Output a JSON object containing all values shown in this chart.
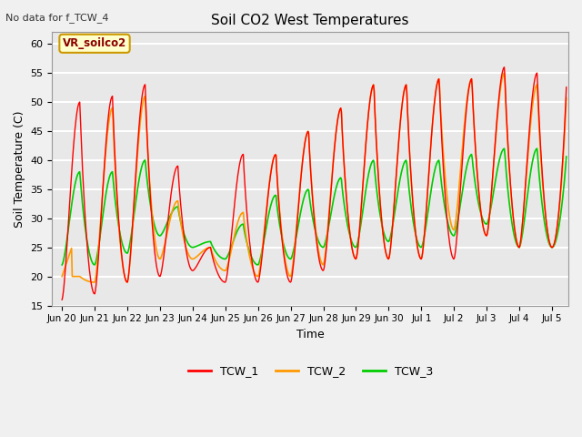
{
  "title": "Soil CO2 West Temperatures",
  "xlabel": "Time",
  "ylabel": "Soil Temperature (C)",
  "no_data_label": "No data for f_TCW_4",
  "annotation_label": "VR_soilco2",
  "ylim": [
    15,
    62
  ],
  "yticks": [
    15,
    20,
    25,
    30,
    35,
    40,
    45,
    50,
    55,
    60
  ],
  "legend_labels": [
    "TCW_1",
    "TCW_2",
    "TCW_3"
  ],
  "colors": {
    "TCW_1": "#ff0000",
    "TCW_2": "#ff9900",
    "TCW_3": "#00cc00"
  },
  "plot_bg_color": "#e8e8e8",
  "fig_bg_color": "#f0f0f0",
  "grid_color": "#ffffff"
}
